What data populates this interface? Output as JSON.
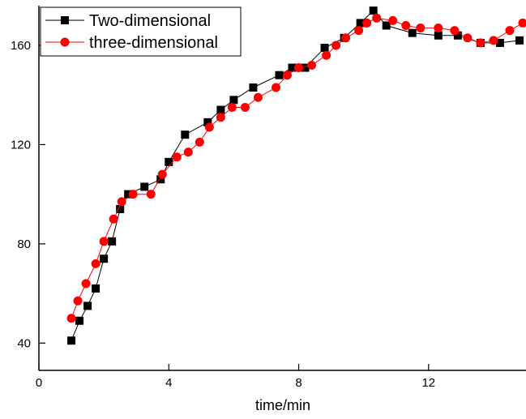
{
  "chart_data": {
    "type": "line",
    "title": "",
    "xlabel": "time/min",
    "ylabel": "",
    "xlim": [
      0,
      15
    ],
    "ylim": [
      29,
      176
    ],
    "xticks": [
      0,
      4,
      8,
      12
    ],
    "yticks": [
      40,
      80,
      120,
      160
    ],
    "grid": false,
    "legend_position": "top-left",
    "series": [
      {
        "name": "Two-dimensional",
        "color": "#000000",
        "marker": "square",
        "x": [
          1.0,
          1.25,
          1.5,
          1.75,
          2.0,
          2.25,
          2.5,
          2.75,
          3.25,
          3.75,
          4.0,
          4.5,
          5.2,
          5.6,
          6.0,
          6.6,
          7.4,
          7.8,
          8.2,
          8.8,
          9.4,
          9.9,
          10.3,
          10.7,
          11.5,
          12.3,
          12.9,
          13.6,
          14.2,
          14.8
        ],
        "y": [
          41,
          49,
          55,
          62,
          74,
          81,
          94,
          100,
          103,
          106,
          113,
          124,
          129,
          134,
          138,
          143,
          148,
          151,
          151,
          159,
          163,
          169,
          174,
          168,
          165,
          164,
          164,
          161,
          161,
          162
        ]
      },
      {
        "name": "three-dimensional",
        "color": "#ff0000",
        "marker": "circle",
        "x": [
          1.0,
          1.2,
          1.45,
          1.75,
          2.0,
          2.3,
          2.55,
          2.9,
          3.45,
          3.8,
          4.25,
          4.6,
          4.95,
          5.25,
          5.6,
          5.95,
          6.35,
          6.75,
          7.3,
          7.65,
          8.0,
          8.4,
          8.85,
          9.15,
          9.45,
          9.85,
          10.1,
          10.4,
          10.9,
          11.3,
          11.75,
          12.3,
          12.8,
          13.2,
          13.6,
          14.0,
          14.5,
          14.9
        ],
        "y": [
          50,
          57,
          64,
          72,
          81,
          90,
          97,
          100,
          100,
          108,
          115,
          117,
          121,
          127,
          131,
          135,
          135,
          139,
          143,
          148,
          151,
          152,
          156,
          160,
          163,
          166,
          169,
          171,
          170,
          168,
          167,
          167,
          166,
          163,
          161,
          162,
          166,
          169
        ]
      }
    ]
  }
}
